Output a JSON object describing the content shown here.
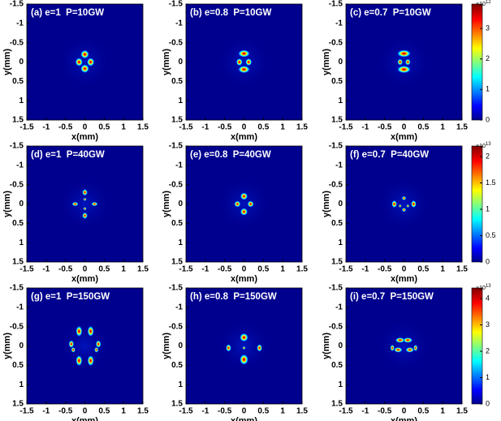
{
  "chart_data": [
    {
      "type": "heatmap",
      "title": "(a) e=1  P=10GW",
      "xlabel": "x(mm)",
      "ylabel": "y(mm)",
      "xlim": [
        -1.5,
        1.5
      ],
      "ylim": [
        -1.5,
        1.5
      ],
      "y_reversed": true,
      "xticks": [
        -1.5,
        -1,
        -0.5,
        0,
        0.5,
        1,
        1.5
      ],
      "yticks": [
        -1.5,
        -1,
        -0.5,
        0,
        0.5,
        1,
        1.5
      ]
    },
    {
      "type": "heatmap",
      "title": "(b) e=0.8  P=10GW",
      "xlabel": "x(mm)",
      "ylabel": "y(mm)",
      "xlim": [
        -1.5,
        1.5
      ],
      "ylim": [
        -1.5,
        1.5
      ],
      "y_reversed": true,
      "xticks": [
        -1.5,
        -1,
        -0.5,
        0,
        0.5,
        1,
        1.5
      ],
      "yticks": [
        -1.5,
        -1,
        -0.5,
        0,
        0.5,
        1,
        1.5
      ]
    },
    {
      "type": "heatmap",
      "title": "(c) e=0.7  P=10GW",
      "xlabel": "x(mm)",
      "ylabel": "y(mm)",
      "xlim": [
        -1.5,
        1.5
      ],
      "ylim": [
        -1.5,
        1.5
      ],
      "y_reversed": true,
      "xticks": [
        -1.5,
        -1,
        -0.5,
        0,
        0.5,
        1,
        1.5
      ],
      "yticks": [
        -1.5,
        -1,
        -0.5,
        0,
        0.5,
        1,
        1.5
      ],
      "colorbar": {
        "lim": [
          0,
          3.8
        ],
        "ticks": [
          0,
          1,
          2,
          3
        ],
        "multiplier": "×10",
        "exponent": "12"
      }
    },
    {
      "type": "heatmap",
      "title": "(d) e=1  P=40GW",
      "xlabel": "x(mm)",
      "ylabel": "y(mm)",
      "xlim": [
        -1.5,
        1.5
      ],
      "ylim": [
        -1.5,
        1.5
      ],
      "y_reversed": true,
      "xticks": [
        -1.5,
        -1,
        -0.5,
        0,
        0.5,
        1,
        1.5
      ],
      "yticks": [
        -1.5,
        -1,
        -0.5,
        0,
        0.5,
        1,
        1.5
      ]
    },
    {
      "type": "heatmap",
      "title": "(e) e=0.8  P=40GW",
      "xlabel": "x(mm)",
      "ylabel": "y(mm)",
      "xlim": [
        -1.5,
        1.5
      ],
      "ylim": [
        -1.5,
        1.5
      ],
      "y_reversed": true,
      "xticks": [
        -1.5,
        -1,
        -0.5,
        0,
        0.5,
        1,
        1.5
      ],
      "yticks": [
        -1.5,
        -1,
        -0.5,
        0,
        0.5,
        1,
        1.5
      ]
    },
    {
      "type": "heatmap",
      "title": "(f) e=0.7  P=40GW",
      "xlabel": "x(mm)",
      "ylabel": "y(mm)",
      "xlim": [
        -1.5,
        1.5
      ],
      "ylim": [
        -1.5,
        1.5
      ],
      "y_reversed": true,
      "xticks": [
        -1.5,
        -1,
        -0.5,
        0,
        0.5,
        1,
        1.5
      ],
      "yticks": [
        -1.5,
        -1,
        -0.5,
        0,
        0.5,
        1,
        1.5
      ],
      "colorbar": {
        "lim": [
          0,
          2.2
        ],
        "ticks": [
          0,
          0.5,
          1,
          1.5,
          2
        ],
        "multiplier": "×10",
        "exponent": "13"
      }
    },
    {
      "type": "heatmap",
      "title": "(g) e=1  P=150GW",
      "xlabel": "x(mm)",
      "ylabel": "y(mm)",
      "xlim": [
        -1.5,
        1.5
      ],
      "ylim": [
        -1.5,
        1.5
      ],
      "y_reversed": true,
      "xticks": [
        -1.5,
        -1,
        -0.5,
        0,
        0.5,
        1,
        1.5
      ],
      "yticks": [
        -1.5,
        -1,
        -0.5,
        0,
        0.5,
        1,
        1.5
      ]
    },
    {
      "type": "heatmap",
      "title": "(h) e=0.8  P=150GW",
      "xlabel": "x(mm)",
      "ylabel": "y(mm)",
      "xlim": [
        -1.5,
        1.5
      ],
      "ylim": [
        -1.5,
        1.5
      ],
      "y_reversed": true,
      "xticks": [
        -1.5,
        -1,
        -0.5,
        0,
        0.5,
        1,
        1.5
      ],
      "yticks": [
        -1.5,
        -1,
        -0.5,
        0,
        0.5,
        1,
        1.5
      ]
    },
    {
      "type": "heatmap",
      "title": "(i) e=0.7  P=150GW",
      "xlabel": "x(mm)",
      "ylabel": "y(mm)",
      "xlim": [
        -1.5,
        1.5
      ],
      "ylim": [
        -1.5,
        1.5
      ],
      "y_reversed": true,
      "xticks": [
        -1.5,
        -1,
        -0.5,
        0,
        0.5,
        1,
        1.5
      ],
      "yticks": [
        -1.5,
        -1,
        -0.5,
        0,
        0.5,
        1,
        1.5
      ],
      "colorbar": {
        "lim": [
          0,
          4.4
        ],
        "ticks": [
          0,
          1,
          2,
          3,
          4
        ],
        "multiplier": "×10",
        "exponent": "13"
      }
    }
  ]
}
